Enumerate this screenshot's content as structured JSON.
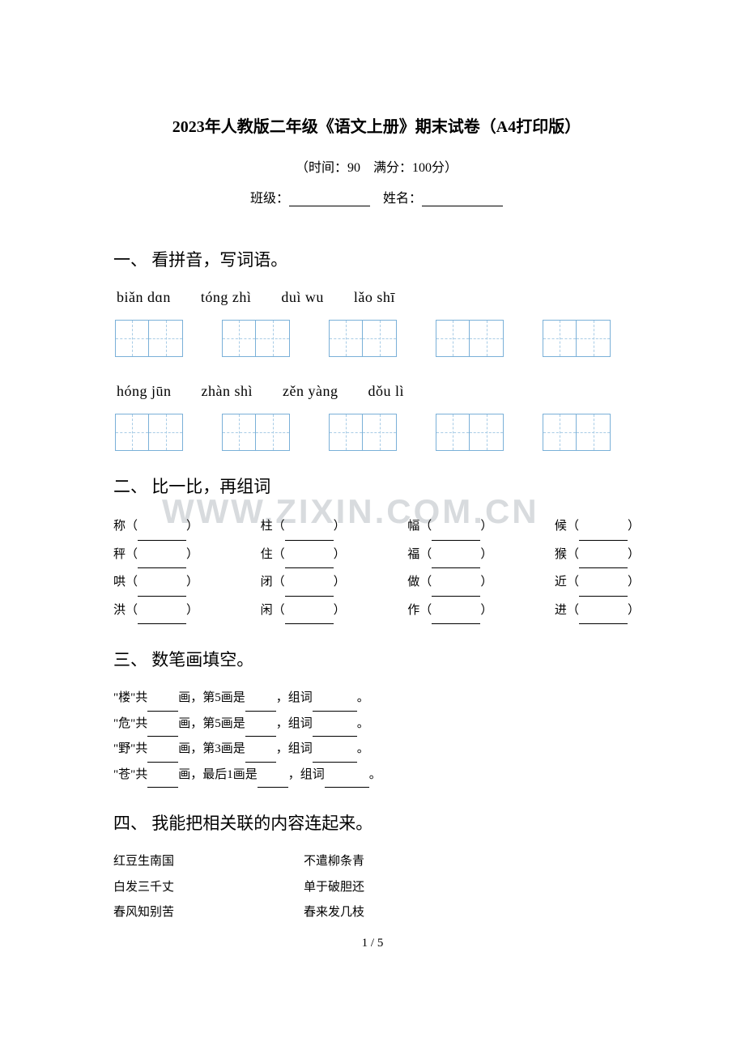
{
  "title": "2023年人教版二年级《语文上册》期末试卷（A4打印版）",
  "subtitle": "（时间：90　满分：100分）",
  "class_label": "班级：",
  "name_label": "姓名：",
  "watermark": "WWW.ZIXIN.COM.CN",
  "page_num": "1 / 5",
  "section1": {
    "title": "一、 看拼音，写词语。",
    "row1": {
      "pinyin": "biǎn dɑn　　tóng zhì　　duì wu　　lǎo shī"
    },
    "row2": {
      "pinyin": "hóng jūn　　zhàn shì　　zěn yàng　　dǒu  lì"
    }
  },
  "section2": {
    "title": "二、 比一比，再组词",
    "rows": [
      [
        "称",
        "柱",
        "幅",
        "候"
      ],
      [
        "秤",
        "住",
        "福",
        "猴"
      ],
      [
        "哄",
        "闭",
        "做",
        "近"
      ],
      [
        "洪",
        "闲",
        "作",
        "进"
      ]
    ]
  },
  "section3": {
    "title": "三、 数笔画填空。",
    "lines": [
      {
        "char": "楼",
        "q": "画，第5画是",
        "tail": "，组词"
      },
      {
        "char": "危",
        "q": "画，第5画是",
        "tail": "，组词"
      },
      {
        "char": "野",
        "q": "画，第3画是",
        "tail": "，组词"
      },
      {
        "char": "苍",
        "q": "画，最后1画是",
        "tail": "，组词"
      }
    ]
  },
  "section4": {
    "title": "四、 我能把相关联的内容连起来。",
    "pairs": [
      {
        "left": "红豆生南国",
        "right": "不遣柳条青"
      },
      {
        "left": "白发三千丈",
        "right": "单于破胆还"
      },
      {
        "left": "春风知别苦",
        "right": "春来发几枝"
      }
    ]
  }
}
